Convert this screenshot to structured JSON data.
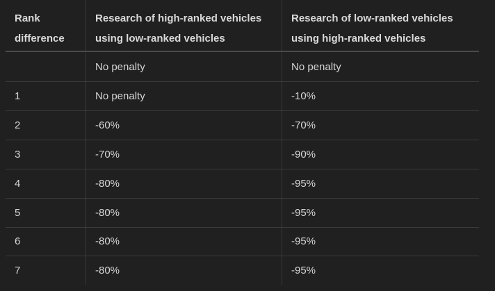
{
  "table": {
    "headers": [
      [
        "Rank",
        "difference"
      ],
      [
        "Research of high-ranked vehicles",
        "using low-ranked vehicles"
      ],
      [
        "Research of low-ranked vehicles",
        "using high-ranked vehicles"
      ]
    ],
    "rows": [
      [
        "",
        "No penalty",
        "No penalty"
      ],
      [
        "1",
        "No penalty",
        "-10%"
      ],
      [
        "2",
        "-60%",
        "-70%"
      ],
      [
        "3",
        "-70%",
        "-90%"
      ],
      [
        "4",
        "-80%",
        "-95%"
      ],
      [
        "5",
        "-80%",
        "-95%"
      ],
      [
        "6",
        "-80%",
        "-95%"
      ],
      [
        "7",
        "-80%",
        "-95%"
      ]
    ]
  }
}
